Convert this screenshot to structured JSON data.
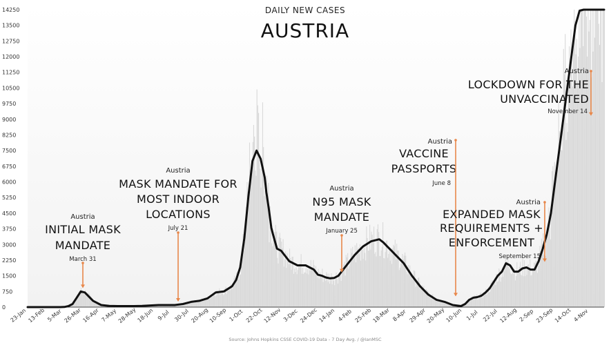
{
  "chart_data": {
    "type": "line",
    "title": "AUSTRIA",
    "subtitle": "DAILY NEW CASES",
    "source": "Source: Johns Hopkins CSSE COVID-19 Data - 7 Day Avg. / @IanMSC",
    "y_ticks": [
      0,
      750,
      1500,
      2250,
      3000,
      3750,
      4500,
      5250,
      6000,
      6750,
      7500,
      8250,
      9000,
      9750,
      10500,
      11250,
      12000,
      12750,
      13500,
      14250
    ],
    "ylim": [
      0,
      14250
    ],
    "x_tick_labels": [
      "23-Jan",
      "13-Feb",
      "5-Mar",
      "26-Mar",
      "16-Apr",
      "7-May",
      "28-May",
      "18-Jun",
      "9-Jul",
      "30-Jul",
      "20-Aug",
      "10-Sep",
      "1-Oct",
      "22-Oct",
      "12-Nov",
      "3-Dec",
      "24-Dec",
      "14-Jan",
      "4-Feb",
      "25-Feb",
      "18-Mar",
      "8-Apr",
      "29-Apr",
      "20-May",
      "10-Jun",
      "1-Jul",
      "22-Jul",
      "12-Aug",
      "2-Sep",
      "23-Sep",
      "14-Oct",
      "4-Nov"
    ],
    "series": [
      {
        "x": [
          0,
          10,
          20,
          28,
          35,
          40,
          45,
          50,
          55,
          60,
          65,
          70,
          80,
          90,
          100,
          110,
          120,
          130,
          140,
          150,
          160,
          170,
          180,
          190,
          200,
          210,
          220,
          230,
          240,
          250,
          255,
          260,
          265,
          270,
          275,
          280,
          285,
          290,
          292,
          295,
          298,
          300,
          305,
          310,
          320,
          330,
          340,
          350,
          355,
          360,
          365,
          370,
          375,
          380,
          390,
          400,
          410,
          420,
          430,
          435,
          440,
          445,
          450,
          455,
          460,
          465,
          470,
          480,
          490,
          500,
          510,
          520,
          530,
          535,
          540,
          545,
          550,
          555,
          560,
          565,
          570,
          575,
          580,
          585,
          590,
          595,
          600,
          605,
          610,
          615,
          620,
          625,
          630,
          635,
          640,
          645,
          650,
          655,
          660,
          665,
          670,
          675,
          680,
          685,
          690,
          695,
          700,
          705
        ],
        "y": [
          0,
          0,
          0,
          0,
          0,
          0,
          5,
          50,
          150,
          450,
          750,
          700,
          300,
          100,
          60,
          50,
          50,
          50,
          60,
          80,
          100,
          100,
          100,
          150,
          250,
          300,
          420,
          700,
          750,
          1000,
          1300,
          1900,
          3300,
          5300,
          7000,
          7500,
          7100,
          6200,
          5500,
          4700,
          3800,
          3500,
          2800,
          2700,
          2200,
          2000,
          2000,
          1800,
          1550,
          1500,
          1420,
          1380,
          1400,
          1500,
          2000,
          2500,
          2900,
          3150,
          3250,
          3100,
          2900,
          2700,
          2500,
          2300,
          2100,
          1800,
          1500,
          1000,
          600,
          350,
          250,
          100,
          50,
          150,
          350,
          450,
          480,
          550,
          700,
          900,
          1200,
          1500,
          1700,
          2100,
          2000,
          1700,
          1700,
          1850,
          1900,
          1800,
          1800,
          2200,
          2800,
          3500,
          4500,
          6000,
          7500,
          9000,
          10500,
          12000,
          13500,
          14200,
          14250,
          14250,
          14250,
          14250,
          14250,
          14250
        ]
      }
    ],
    "annotations": [
      {
        "region": "Austria",
        "text": [
          "INITIAL MASK",
          "MANDATE"
        ],
        "date": "March 31",
        "x": 55,
        "y": 750
      },
      {
        "region": "Austria",
        "text": [
          "MASK MANDATE FOR",
          "MOST INDOOR",
          "LOCATIONS"
        ],
        "date": "July 21",
        "x": 183,
        "y": 100
      },
      {
        "region": "Austria",
        "text": [
          "N95 MASK",
          "MANDATE"
        ],
        "date": "January 25",
        "x": 368,
        "y": 1500
      },
      {
        "region": "Austria",
        "text": [
          "VACCINE",
          "PASSPORTS"
        ],
        "date": "June 8",
        "x": 500,
        "y": 350
      },
      {
        "region": "Austria",
        "text": [
          "EXPANDED MASK",
          "REQUIREMENTS +",
          "ENFORCEMENT"
        ],
        "date": "September 15",
        "x": 600,
        "y": 2000
      },
      {
        "region": "Austria",
        "text": [
          "LOCKDOWN FOR THE",
          "UNVACCINATED"
        ],
        "date": "November 14",
        "x": 660,
        "y": 9000
      }
    ]
  },
  "colors": {
    "line": "#111111",
    "arrow": "#e8874a",
    "bars": "#d9d9d9",
    "axis": "#444444"
  }
}
